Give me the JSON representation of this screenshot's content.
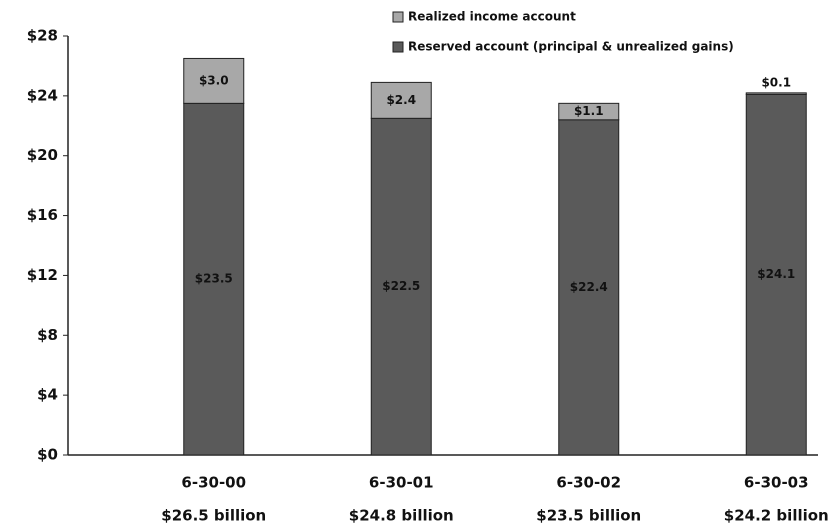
{
  "chart_data": {
    "type": "stacked_bar",
    "categories": [
      "6-30-00",
      "6-30-01",
      "6-30-02",
      "6-30-03"
    ],
    "category_totals": [
      "$26.5 billion",
      "$24.8 billion",
      "$23.5 billion",
      "$24.2 billion"
    ],
    "series": [
      {
        "name": "Reserved account (principal & unrealized gains)",
        "color": "#5a5a5a",
        "values": [
          23.5,
          22.5,
          22.4,
          24.1
        ],
        "value_labels": [
          "$23.5",
          "$22.5",
          "$22.4",
          "$24.1"
        ]
      },
      {
        "name": "Realized income account",
        "color": "#a8a8a8",
        "values": [
          3.0,
          2.4,
          1.1,
          0.1
        ],
        "value_labels": [
          "$3.0",
          "$2.4",
          "$1.1",
          "$0.1"
        ]
      }
    ],
    "ylim": [
      0,
      28
    ],
    "yticks": [
      {
        "value": 0,
        "label": "$0"
      },
      {
        "value": 4,
        "label": "$4"
      },
      {
        "value": 8,
        "label": "$8"
      },
      {
        "value": 12,
        "label": "$12"
      },
      {
        "value": 16,
        "label": "$16"
      },
      {
        "value": 20,
        "label": "$20"
      },
      {
        "value": 24,
        "label": "$24"
      },
      {
        "value": 28,
        "label": "$28"
      }
    ]
  }
}
